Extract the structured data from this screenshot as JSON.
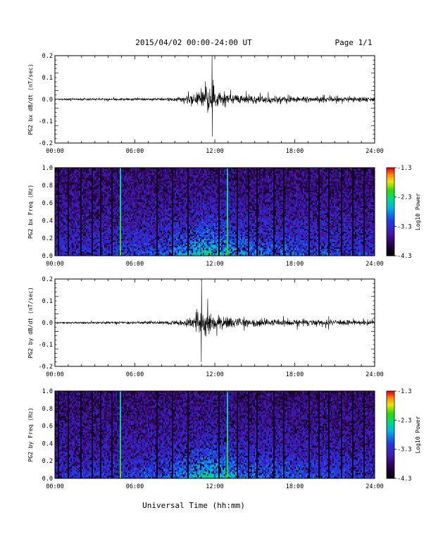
{
  "header": {
    "title": "2015/04/02  00:00-24:00 UT",
    "page": "Page 1/1"
  },
  "footer": {
    "xlabel": "Universal Time (hh:mm)"
  },
  "chart_data": [
    {
      "type": "line",
      "ylabel": "PG2 bx dB/dt (nT/sec)",
      "xlim": [
        0,
        24
      ],
      "ylim": [
        -0.2,
        0.2
      ],
      "x_ticks": [
        "00:00",
        "06:00",
        "12:00",
        "18:00",
        "24:00"
      ],
      "y_ticks": [
        "-0.2",
        "-0.1",
        "0.0",
        "0.1",
        "0.2"
      ],
      "envelope": {
        "hours": [
          0,
          2,
          4,
          6,
          8,
          9,
          10,
          10.5,
          11,
          11.5,
          12,
          12.5,
          13,
          14,
          15,
          16,
          17,
          18,
          19,
          20,
          21,
          22,
          23,
          24
        ],
        "amplitude": [
          0.008,
          0.01,
          0.012,
          0.012,
          0.015,
          0.02,
          0.04,
          0.07,
          0.1,
          0.14,
          0.1,
          0.07,
          0.055,
          0.045,
          0.04,
          0.038,
          0.04,
          0.032,
          0.028,
          0.03,
          0.026,
          0.025,
          0.022,
          0.018
        ]
      },
      "peak": {
        "hour": 11.8,
        "max": 0.2,
        "min": -0.17
      }
    },
    {
      "type": "heatmap",
      "ylabel": "PG2 bx Freq (Hz)",
      "xlim": [
        0,
        24
      ],
      "ylim": [
        0,
        1.0
      ],
      "x_ticks": [
        "00:00",
        "06:00",
        "12:00",
        "18:00",
        "24:00"
      ],
      "y_ticks": [
        "0.0",
        "0.2",
        "0.4",
        "0.6",
        "0.8",
        "1.0"
      ],
      "colorbar": {
        "label": "Log10 Power",
        "ticks": [
          "-1.3",
          "-2.3",
          "-3.3",
          "-4.3"
        ],
        "range": [
          -4.3,
          -1.3
        ]
      },
      "activity_profile": {
        "hours": [
          0,
          4,
          8,
          10,
          11,
          12,
          13,
          14,
          16,
          18,
          20,
          24
        ],
        "level": [
          0.15,
          0.2,
          0.3,
          0.55,
          0.75,
          0.7,
          0.6,
          0.45,
          0.38,
          0.32,
          0.28,
          0.2
        ]
      },
      "dark_gaps_hours": [
        0.25,
        1.0,
        2.0,
        2.8,
        3.4,
        4.3,
        7.7,
        8.8,
        10.0,
        12.3,
        13.7,
        14.5,
        15.2,
        16.4,
        17.2,
        19.1,
        19.8,
        20.6,
        21.5,
        22.4,
        23.2
      ],
      "bright_lines_hours": [
        4.95,
        13.0
      ]
    },
    {
      "type": "line",
      "ylabel": "PG2 by dB/dt (nT/sec)",
      "xlim": [
        0,
        24
      ],
      "ylim": [
        -0.2,
        0.2
      ],
      "x_ticks": [
        "00:00",
        "06:00",
        "12:00",
        "18:00",
        "24:00"
      ],
      "y_ticks": [
        "-0.2",
        "-0.1",
        "0.0",
        "0.1",
        "0.2"
      ],
      "envelope": {
        "hours": [
          0,
          2,
          4,
          6,
          8,
          9,
          10,
          10.5,
          11,
          11.5,
          12,
          12.5,
          13,
          14,
          15,
          16,
          17,
          18,
          19,
          20,
          21,
          22,
          23,
          24
        ],
        "amplitude": [
          0.008,
          0.01,
          0.012,
          0.013,
          0.016,
          0.02,
          0.035,
          0.08,
          0.13,
          0.12,
          0.08,
          0.06,
          0.05,
          0.045,
          0.04,
          0.035,
          0.038,
          0.03,
          0.026,
          0.028,
          0.026,
          0.024,
          0.022,
          0.018
        ]
      },
      "peak": {
        "hour": 11.0,
        "max": 0.2,
        "min": -0.18
      }
    },
    {
      "type": "heatmap",
      "ylabel": "PG2 by Freq (Hz)",
      "xlim": [
        0,
        24
      ],
      "ylim": [
        0,
        1.0
      ],
      "x_ticks": [
        "00:00",
        "06:00",
        "12:00",
        "18:00",
        "24:00"
      ],
      "y_ticks": [
        "0.0",
        "0.2",
        "0.4",
        "0.6",
        "0.8",
        "1.0"
      ],
      "colorbar": {
        "label": "Log10 Power",
        "ticks": [
          "-1.3",
          "-2.3",
          "-3.3",
          "-4.3"
        ],
        "range": [
          -4.3,
          -1.3
        ]
      },
      "activity_profile": {
        "hours": [
          0,
          4,
          8,
          10,
          11,
          12,
          13,
          14,
          16,
          18,
          20,
          24
        ],
        "level": [
          0.15,
          0.2,
          0.3,
          0.5,
          0.7,
          0.68,
          0.6,
          0.45,
          0.38,
          0.32,
          0.28,
          0.2
        ]
      },
      "dark_gaps_hours": [
        0.25,
        1.0,
        2.0,
        2.8,
        3.4,
        4.3,
        7.7,
        8.8,
        10.0,
        12.3,
        13.7,
        14.5,
        15.2,
        16.4,
        17.2,
        19.1,
        19.8,
        20.6,
        21.5,
        22.4,
        23.2
      ],
      "bright_lines_hours": [
        4.95,
        13.0
      ]
    }
  ]
}
